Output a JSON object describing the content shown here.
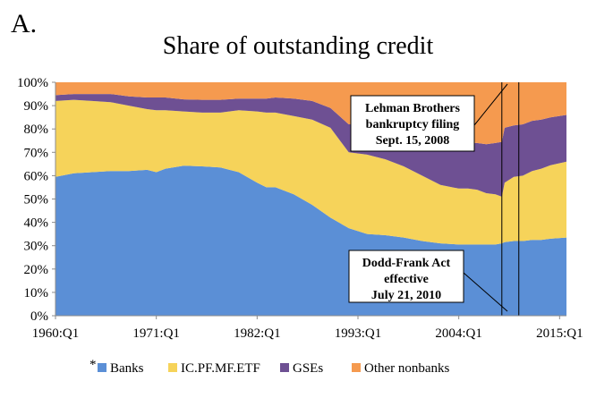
{
  "panel_letter": "A.",
  "legend_star": "*",
  "chart_data": {
    "type": "area",
    "stacked": true,
    "title": "Share of outstanding credit",
    "xlabel": "",
    "ylabel": "",
    "ylim": [
      0,
      100
    ],
    "y_ticks": [
      "0%",
      "10%",
      "20%",
      "30%",
      "40%",
      "50%",
      "60%",
      "70%",
      "80%",
      "90%",
      "100%"
    ],
    "x_ticks": [
      "1960:Q1",
      "1971:Q1",
      "1982:Q1",
      "1993:Q1",
      "2004:Q1",
      "2015:Q1"
    ],
    "x_tick_years": [
      1960,
      1971,
      1982,
      1993,
      2004,
      2015
    ],
    "xlim": [
      1960,
      2015.75
    ],
    "grid": false,
    "legend_position": "bottom",
    "x": [
      1960,
      1962,
      1964,
      1966,
      1968,
      1970,
      1971,
      1972,
      1974,
      1976,
      1978,
      1980,
      1982,
      1983,
      1984,
      1986,
      1988,
      1990,
      1992,
      1994,
      1996,
      1998,
      2000,
      2002,
      2004,
      2005,
      2006,
      2007,
      2008,
      2008.7,
      2009,
      2010,
      2011,
      2012,
      2013,
      2014,
      2015.75
    ],
    "series": [
      {
        "name": "Banks",
        "color": "#5b8fd6",
        "values": [
          59.5,
          61,
          61.5,
          62,
          62,
          62.5,
          61.5,
          63,
          64.3,
          64,
          63.5,
          61.5,
          57,
          55,
          55,
          52,
          47.5,
          42,
          37.5,
          35,
          34.5,
          33.5,
          32,
          31,
          30.5,
          30.5,
          30.5,
          30.5,
          30.5,
          31,
          31.5,
          32,
          32,
          32.5,
          32.5,
          33,
          33.5
        ]
      },
      {
        "name": "IC.PF.MF.ETF",
        "color": "#f6d35a",
        "values": [
          32.5,
          31.5,
          30.5,
          29.5,
          28,
          26,
          26.5,
          25,
          23.2,
          23,
          23.5,
          26.5,
          30.5,
          32,
          32,
          33.5,
          36.5,
          38.5,
          32.5,
          34,
          32.5,
          30.5,
          28,
          25,
          24,
          24,
          23.5,
          22,
          21.5,
          20,
          25.5,
          27.5,
          28,
          29.5,
          30.5,
          31.5,
          32.5
        ]
      },
      {
        "name": "GSEs",
        "color": "#6e5093",
        "values": [
          2.5,
          2.5,
          3,
          3.5,
          4,
          5,
          5.5,
          5.5,
          5.2,
          5.5,
          5.5,
          5,
          5.5,
          6,
          6.5,
          7.5,
          8,
          8.5,
          12,
          13,
          14.5,
          16.5,
          19,
          21,
          20.5,
          19.5,
          20,
          21,
          22,
          23.5,
          23.5,
          22,
          22,
          21.5,
          21,
          20.5,
          20
        ]
      },
      {
        "name": "Other nonbanks",
        "color": "#f59a4f",
        "values": [
          5.5,
          5,
          5,
          5,
          6,
          6.5,
          6.5,
          6.5,
          7.3,
          7.5,
          7.5,
          7,
          7,
          7,
          6.5,
          7,
          8,
          11,
          18,
          18,
          18.5,
          19.5,
          21,
          23,
          25,
          26,
          26,
          26.5,
          26,
          25.5,
          19.5,
          18.5,
          18,
          16.5,
          16,
          15,
          14
        ]
      }
    ],
    "annotations": [
      {
        "name": "lehman",
        "lines": [
          "Lehman Brothers",
          "bankruptcy filing",
          "Sept. 15, 2008"
        ],
        "event_x": 2008.7
      },
      {
        "name": "dodd-frank",
        "lines": [
          "Dodd-Frank Act",
          "effective",
          "July 21, 2010"
        ],
        "event_x": 2010.55
      }
    ]
  }
}
